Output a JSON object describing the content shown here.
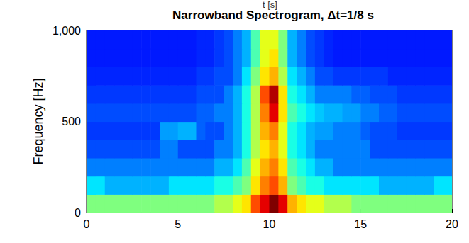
{
  "chart_data": {
    "type": "heatmap",
    "title": "Narrowband Spectrogram, Δt=1/8 s",
    "annotations": [
      "t [s]"
    ],
    "ylabel": "Frequency [Hz]",
    "x_bins": [
      0,
      0.5,
      1,
      1.5,
      2,
      2.5,
      3,
      3.5,
      4,
      4.5,
      5,
      5.5,
      6,
      6.5,
      7,
      7.5,
      8,
      8.5,
      9,
      9.5,
      10,
      10.5,
      11,
      11.5,
      12,
      12.5,
      13,
      13.5,
      14,
      14.5,
      15,
      15.5,
      16,
      16.5,
      17,
      17.5,
      18,
      18.5,
      19,
      19.5,
      20
    ],
    "y_bins": [
      0,
      100,
      200,
      300,
      400,
      500,
      600,
      700,
      800,
      900,
      1000
    ],
    "cells": [
      [
        5,
        5,
        5,
        5,
        5,
        5,
        5,
        5,
        5,
        5,
        5,
        5,
        5,
        5,
        5.5,
        5.5,
        6,
        6.5,
        8,
        9,
        10,
        9,
        7,
        6.5,
        6,
        6,
        5.5,
        5.5,
        5.5,
        5,
        5,
        5,
        5,
        5,
        5,
        5,
        5,
        5,
        5,
        5
      ],
      [
        3.5,
        3.5,
        3,
        3,
        3,
        3,
        3,
        3,
        3,
        3.5,
        3.5,
        3.5,
        3.5,
        3.5,
        4,
        4,
        4.5,
        5,
        6.5,
        7.5,
        8,
        7,
        5,
        4.5,
        4,
        4,
        3.5,
        3.5,
        3.5,
        3.5,
        3.5,
        3.5,
        3,
        3,
        3,
        3,
        3,
        3,
        3.5,
        3.5
      ],
      [
        2.5,
        2.5,
        2.5,
        2.5,
        2.5,
        2.5,
        2.5,
        2.5,
        2.5,
        2.5,
        2.5,
        2.5,
        2.5,
        2.5,
        3,
        3,
        3.5,
        4.5,
        6,
        7,
        7.5,
        6.5,
        4.5,
        4,
        3.5,
        3,
        3,
        2.5,
        2.5,
        2.5,
        2.5,
        2.5,
        2.5,
        2.5,
        2.5,
        2.5,
        2.5,
        2.5,
        2.5,
        2.5
      ],
      [
        2,
        2,
        2,
        2,
        2,
        2,
        2,
        2,
        2.5,
        2.5,
        2,
        2,
        2,
        2,
        2.5,
        2.5,
        3,
        4,
        5.5,
        6.5,
        7,
        6,
        4,
        3.5,
        3,
        2.5,
        2.5,
        2.5,
        2.5,
        2.5,
        2.5,
        2,
        2,
        2,
        2,
        2,
        2,
        2,
        2,
        2
      ],
      [
        1.8,
        1.8,
        1.8,
        1.8,
        1.8,
        1.8,
        1.8,
        1.8,
        2.8,
        2.8,
        3,
        3,
        2.2,
        2,
        2,
        2.5,
        3,
        4,
        5.5,
        7,
        7.5,
        6,
        4,
        3.5,
        3,
        2.8,
        2.8,
        2.5,
        2.5,
        2.5,
        2.2,
        2,
        2,
        2,
        1.8,
        1.8,
        1.8,
        1.8,
        1.8,
        1.8
      ],
      [
        2,
        2,
        2,
        2,
        2,
        2,
        2,
        2,
        2,
        2,
        2,
        2,
        2.2,
        2.2,
        2.5,
        2.5,
        3,
        4,
        5.5,
        7.5,
        9,
        6.5,
        4.5,
        4,
        3.5,
        3.2,
        3,
        3,
        2.8,
        2.8,
        2.5,
        2.5,
        2.2,
        2.2,
        2,
        2,
        2,
        2,
        2,
        2
      ],
      [
        1.8,
        1.8,
        1.8,
        1.8,
        1.8,
        1.8,
        1.8,
        1.8,
        1.8,
        1.8,
        1.8,
        1.8,
        2,
        2,
        2,
        2.5,
        3,
        4,
        5.5,
        8,
        9.5,
        6.5,
        4,
        3.5,
        3,
        2.5,
        2.5,
        2.5,
        2.5,
        2.2,
        2.2,
        2,
        2,
        2,
        1.8,
        1.8,
        1.8,
        1.8,
        1.8,
        1.8
      ],
      [
        1.6,
        1.6,
        1.6,
        1.6,
        1.6,
        1.6,
        1.6,
        1.6,
        1.6,
        1.6,
        1.6,
        1.6,
        1.8,
        1.8,
        2,
        2,
        2.5,
        3.5,
        5,
        6.5,
        7,
        5.5,
        3.5,
        3,
        2.5,
        2,
        2,
        1.8,
        1.8,
        1.8,
        1.8,
        1.8,
        1.8,
        1.6,
        1.6,
        1.6,
        1.6,
        1.6,
        1.6,
        1.6
      ],
      [
        1.5,
        1.5,
        1.5,
        1.5,
        1.5,
        1.5,
        1.5,
        1.5,
        1.5,
        1.5,
        1.5,
        1.5,
        1.6,
        1.6,
        1.8,
        2,
        2.5,
        3,
        4.5,
        6,
        6.5,
        5,
        3,
        2.5,
        2,
        1.8,
        1.6,
        1.5,
        1.5,
        1.5,
        1.5,
        1.5,
        1.5,
        1.5,
        1.5,
        1.5,
        1.5,
        1.5,
        1.5,
        1.5
      ],
      [
        1.5,
        1.5,
        1.5,
        1.5,
        1.5,
        1.5,
        1.5,
        1.5,
        1.5,
        1.5,
        1.5,
        1.5,
        1.6,
        1.6,
        1.8,
        2,
        2.5,
        3,
        4.5,
        6,
        6,
        5,
        3,
        2.5,
        2,
        1.8,
        1.6,
        1.5,
        1.5,
        1.5,
        1.5,
        1.5,
        1.5,
        1.5,
        1.5,
        1.5,
        1.5,
        1.5,
        1.5,
        1.5
      ]
    ],
    "color_range": [
      0,
      10
    ],
    "xlim": [
      0,
      20
    ],
    "ylim": [
      0,
      1000
    ],
    "xticks": [
      0,
      5,
      10,
      15,
      20
    ],
    "yticks": [
      0,
      500,
      1000
    ],
    "grid": false
  }
}
